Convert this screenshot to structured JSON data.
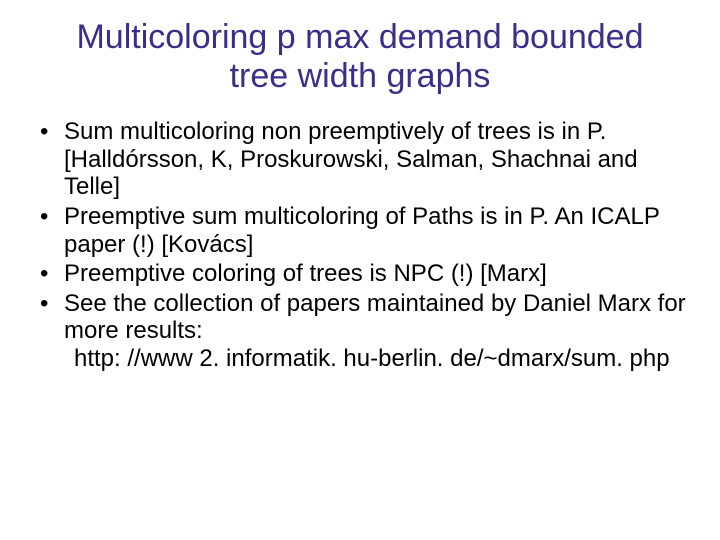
{
  "title_color": "#3a2e8a",
  "body_color": "#000000",
  "background_color": "#ffffff",
  "title_fontsize": 34,
  "body_fontsize": 24,
  "font_family": "Comic Sans MS",
  "title": "Multicoloring p max demand bounded tree width graphs",
  "bullets": [
    {
      "text": "Sum multicoloring non preemptively of trees is in P.  [Halldórsson, K,  Proskurowski,  Salman, Shachnai and Telle]"
    },
    {
      "text": "Preemptive sum multicoloring of Paths is in P. An ICALP paper (!) [Kovács]"
    },
    {
      "text": "Preemptive coloring of trees is NPC (!) [Marx]"
    },
    {
      "text": "See the collection of papers maintained by Daniel Marx for more results:",
      "extra": "http: //www 2. informatik. hu-berlin. de/~dmarx/sum. php"
    }
  ]
}
